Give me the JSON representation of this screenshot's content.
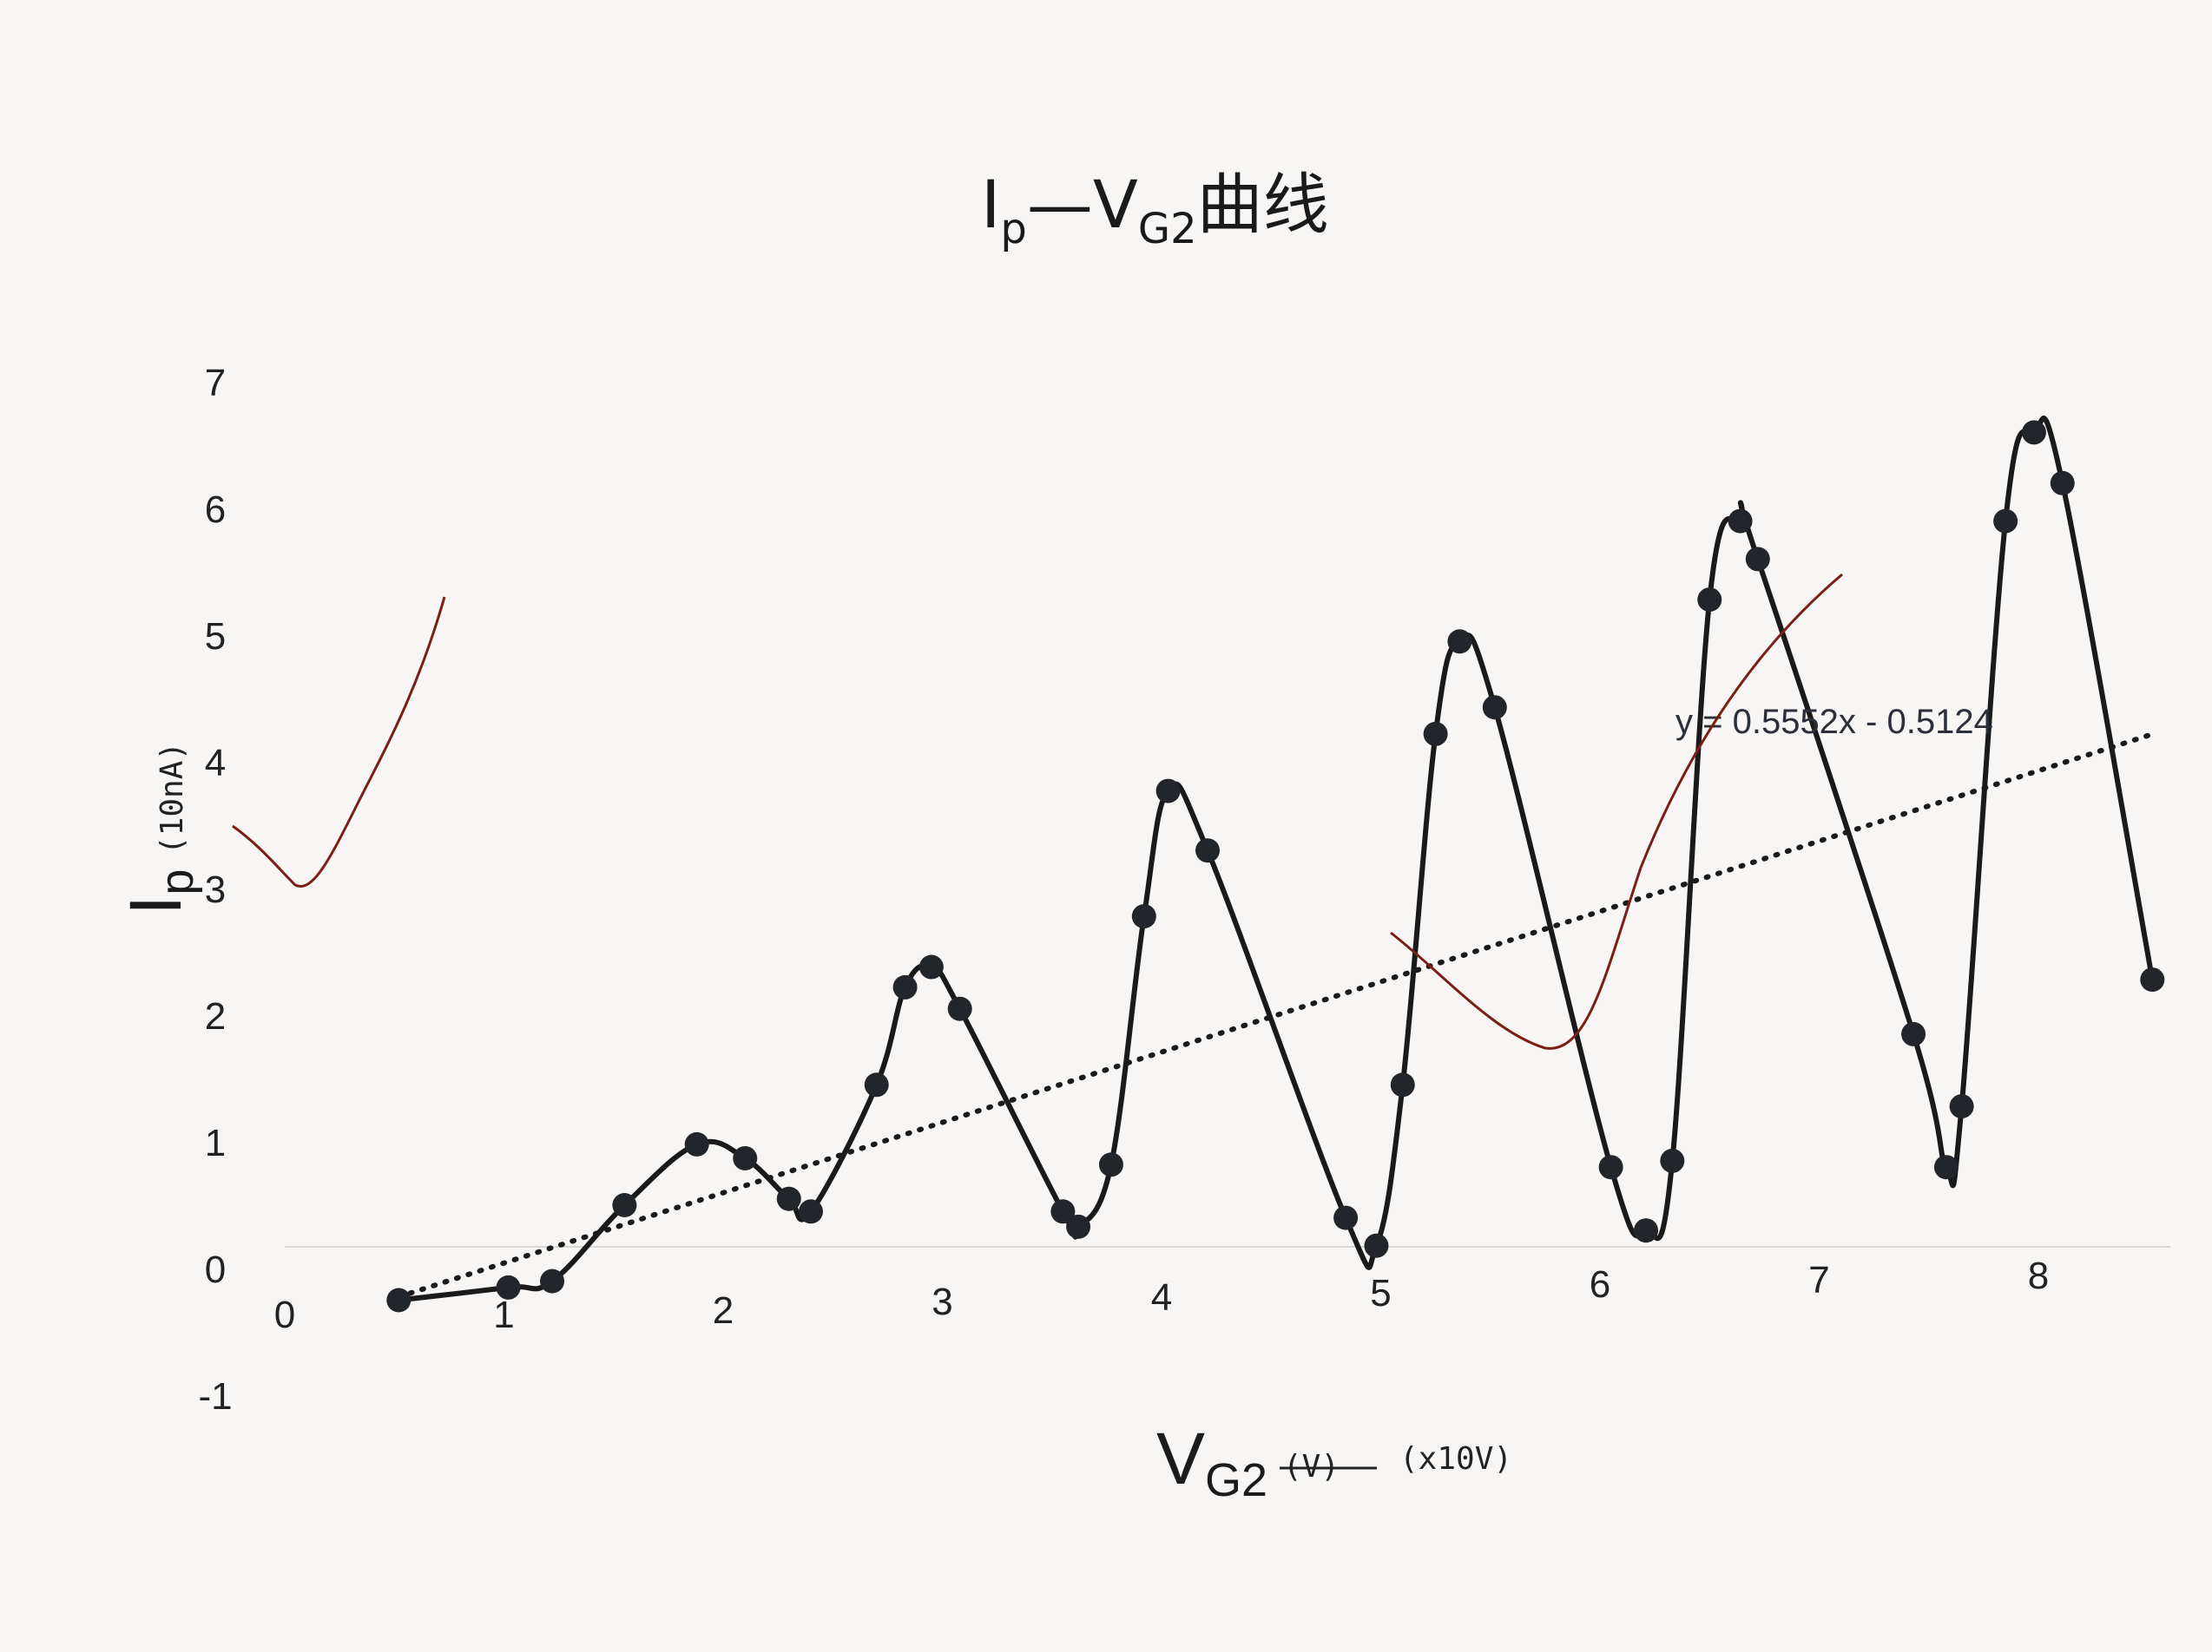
{
  "chart_data": {
    "type": "scatter",
    "title": {
      "main": "I",
      "sub1": "p",
      "dash": "—V",
      "sub2": "G2",
      "suffix": "曲线"
    },
    "x_axis": {
      "label_main": "V",
      "label_sub": "G2",
      "unit_struck": "(V)",
      "unit_hand": "(x10V)",
      "range": [
        0,
        8.3
      ],
      "ticks": [
        "0",
        "1",
        "2",
        "3",
        "4",
        "5",
        "6",
        "7",
        "8"
      ]
    },
    "y_axis": {
      "label_main": "I",
      "label_sub": "p",
      "unit_hand": "(10nA)",
      "range": [
        -1,
        7
      ],
      "ticks": [
        "-1",
        "0",
        "1",
        "2",
        "3",
        "4",
        "5",
        "6",
        "7"
      ]
    },
    "grid": false,
    "series": [
      {
        "values": [
          {
            "x": 0.52,
            "y": -0.25
          },
          {
            "x": 1.02,
            "y": -0.15
          },
          {
            "x": 1.22,
            "y": -0.1
          },
          {
            "x": 1.55,
            "y": 0.5
          },
          {
            "x": 1.88,
            "y": 0.98
          },
          {
            "x": 2.1,
            "y": 0.87
          },
          {
            "x": 2.3,
            "y": 0.55
          },
          {
            "x": 2.4,
            "y": 0.45
          },
          {
            "x": 2.7,
            "y": 1.45
          },
          {
            "x": 2.83,
            "y": 2.22
          },
          {
            "x": 2.95,
            "y": 2.38
          },
          {
            "x": 3.08,
            "y": 2.05
          },
          {
            "x": 3.55,
            "y": 0.45
          },
          {
            "x": 3.62,
            "y": 0.33
          },
          {
            "x": 3.77,
            "y": 0.82
          },
          {
            "x": 3.92,
            "y": 2.78
          },
          {
            "x": 4.03,
            "y": 3.77
          },
          {
            "x": 4.21,
            "y": 3.3
          },
          {
            "x": 4.84,
            "y": 0.4
          },
          {
            "x": 4.98,
            "y": 0.18
          },
          {
            "x": 5.1,
            "y": 1.45
          },
          {
            "x": 5.25,
            "y": 4.22
          },
          {
            "x": 5.36,
            "y": 4.95
          },
          {
            "x": 5.52,
            "y": 4.43
          },
          {
            "x": 6.05,
            "y": 0.8
          },
          {
            "x": 6.21,
            "y": 0.3
          },
          {
            "x": 6.33,
            "y": 0.85
          },
          {
            "x": 6.5,
            "y": 5.28
          },
          {
            "x": 6.64,
            "y": 5.9
          },
          {
            "x": 6.72,
            "y": 5.6
          },
          {
            "x": 7.43,
            "y": 1.85
          },
          {
            "x": 7.58,
            "y": 0.8
          },
          {
            "x": 7.65,
            "y": 1.28
          },
          {
            "x": 7.85,
            "y": 5.9
          },
          {
            "x": 7.98,
            "y": 6.6
          },
          {
            "x": 8.11,
            "y": 6.2
          },
          {
            "x": 8.52,
            "y": 2.28
          }
        ]
      }
    ],
    "trendline": {
      "equation": "y = 0.5552x - 0.5124",
      "slope": 0.5552,
      "intercept": -0.5124,
      "x_range": [
        0.52,
        8.52
      ]
    },
    "colors": {
      "curve": "#1a1a1a",
      "points": "#22262b",
      "annotation": "#7a1f14"
    }
  }
}
